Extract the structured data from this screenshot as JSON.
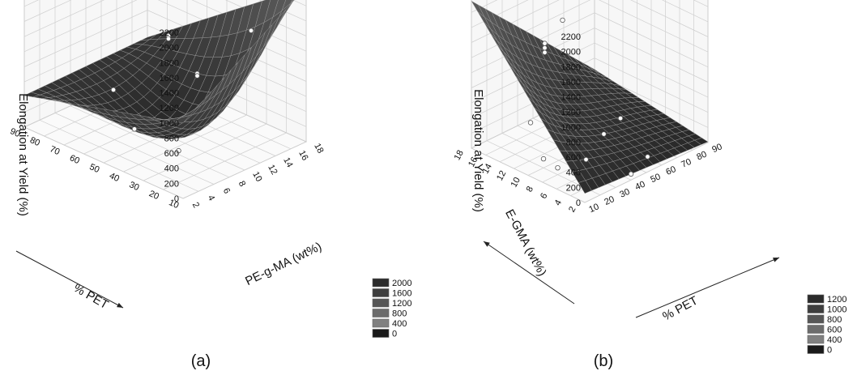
{
  "chart_data": [
    {
      "type": "surface3d",
      "panel_label": "(a)",
      "x_label": "% PET",
      "x_range": [
        10,
        90
      ],
      "x_ticks": [
        "10",
        "20",
        "30",
        "40",
        "50",
        "60",
        "70",
        "80",
        "90"
      ],
      "y_label": "PE-g-MA (wt%)",
      "y_range": [
        2,
        18
      ],
      "y_ticks": [
        "2",
        "4",
        "6",
        "8",
        "10",
        "12",
        "14",
        "16",
        "18"
      ],
      "z_label": "Elongation at Yield (%)",
      "z_range": [
        0,
        2200
      ],
      "z_ticks": [
        "0",
        "200",
        "400",
        "600",
        "800",
        "1000",
        "1200",
        "1400",
        "1600",
        "1800",
        "2000",
        "2200"
      ],
      "legend": [
        "2000",
        "1600",
        "1200",
        "800",
        "400",
        "0"
      ],
      "legend_colors": [
        "#2b2b2b",
        "#3e3e3e",
        "#565656",
        "#6c6c6c",
        "#808080",
        "#1a1a1a"
      ],
      "corner_values": {
        "x10_y2": 1000,
        "x90_y2": 420,
        "x10_y18": 2050,
        "x90_y18": 440,
        "minimum": 30
      },
      "points": [
        {
          "x": 20,
          "y": 4,
          "z": 420
        },
        {
          "x": 30,
          "y": 9,
          "z": 1090
        },
        {
          "x": 30,
          "y": 9,
          "z": 1060
        },
        {
          "x": 30,
          "y": 16,
          "z": 1330
        },
        {
          "x": 60,
          "y": 13,
          "z": 1050
        },
        {
          "x": 60,
          "y": 13,
          "z": 1010
        },
        {
          "x": 50,
          "y": 6,
          "z": 260
        },
        {
          "x": 80,
          "y": 11,
          "z": 190
        }
      ]
    },
    {
      "type": "surface3d",
      "panel_label": "(b)",
      "x_label": "% PET",
      "x_range": [
        10,
        90
      ],
      "x_ticks": [
        "10",
        "20",
        "30",
        "40",
        "50",
        "60",
        "70",
        "80",
        "90"
      ],
      "y_label": "E-GMA (wt%)",
      "y_range": [
        2,
        18
      ],
      "y_ticks": [
        "2",
        "4",
        "6",
        "8",
        "10",
        "12",
        "14",
        "16",
        "18"
      ],
      "z_label": "Elongation at Yield (%)",
      "z_range": [
        0,
        2200
      ],
      "z_ticks": [
        "0",
        "200",
        "400",
        "600",
        "800",
        "1000",
        "1200",
        "1400",
        "1600",
        "1800",
        "2000",
        "2200"
      ],
      "legend": [
        "1200",
        "1000",
        "800",
        "600",
        "400",
        "0"
      ],
      "legend_colors": [
        "#2b2b2b",
        "#3e3e3e",
        "#565656",
        "#6c6c6c",
        "#808080",
        "#1a1a1a"
      ],
      "corner_values": {
        "x10_y2": 120,
        "x90_y2": 10,
        "x10_y18": 1950,
        "x90_y18": 250,
        "minimum": 0
      },
      "points": [
        {
          "x": 20,
          "y": 4,
          "z": 380
        },
        {
          "x": 30,
          "y": 12,
          "z": 1460
        },
        {
          "x": 30,
          "y": 12,
          "z": 1400
        },
        {
          "x": 30,
          "y": 12,
          "z": 1340
        },
        {
          "x": 30,
          "y": 14,
          "z": 320
        },
        {
          "x": 20,
          "y": 10,
          "z": 120
        },
        {
          "x": 20,
          "y": 8,
          "z": 90
        },
        {
          "x": 50,
          "y": 8,
          "z": 240
        },
        {
          "x": 60,
          "y": 16,
          "z": 1290
        },
        {
          "x": 70,
          "y": 10,
          "z": 160
        },
        {
          "x": 40,
          "y": 2,
          "z": 80
        },
        {
          "x": 60,
          "y": 4,
          "z": 20
        }
      ]
    }
  ]
}
